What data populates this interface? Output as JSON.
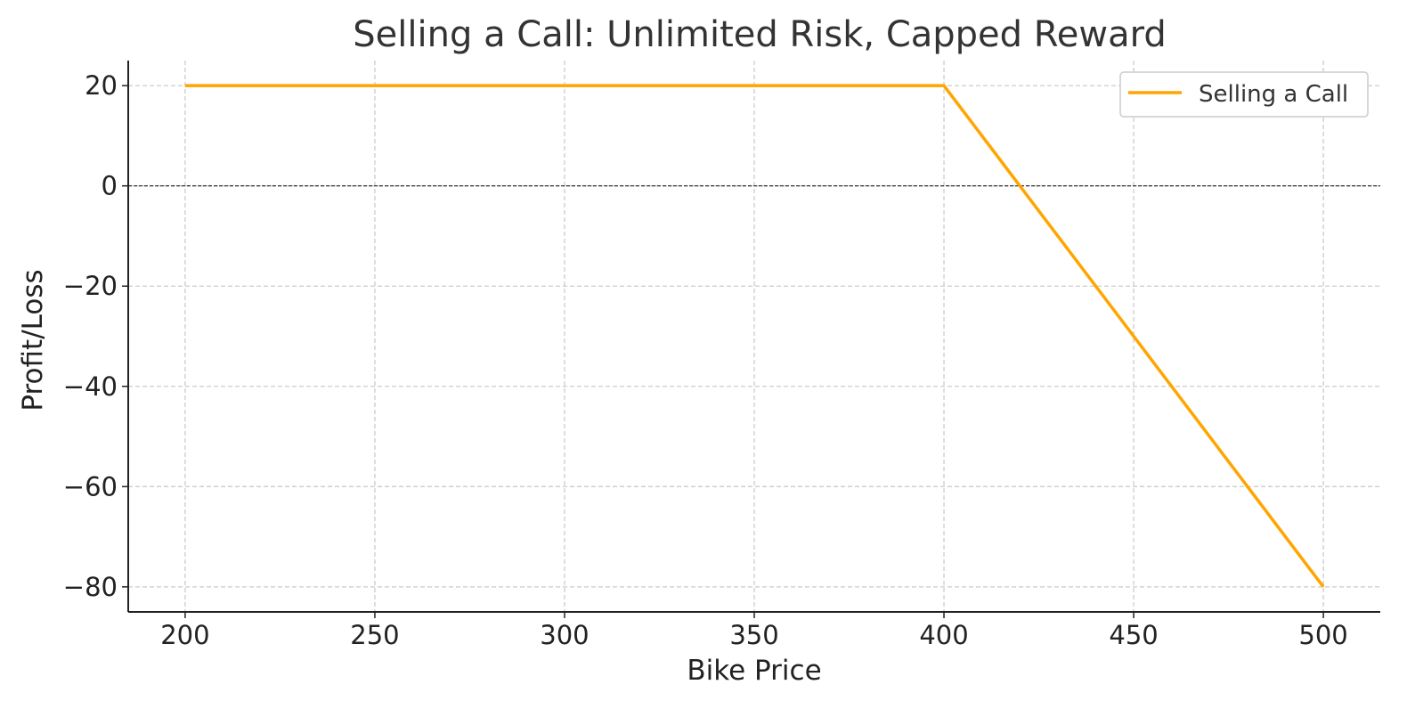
{
  "chart_data": {
    "type": "line",
    "title": "Selling a Call: Unlimited Risk, Capped Reward",
    "xlabel": "Bike Price",
    "ylabel": "Profit/Loss",
    "xlim": [
      185,
      515
    ],
    "ylim": [
      -85,
      25
    ],
    "x_ticks": [
      200,
      250,
      300,
      350,
      400,
      450,
      500
    ],
    "y_ticks": [
      20,
      0,
      -20,
      -40,
      -60,
      -80
    ],
    "x_tick_labels": [
      "200",
      "250",
      "300",
      "350",
      "400",
      "450",
      "500"
    ],
    "y_tick_labels": [
      "20",
      "0",
      "−20",
      "−40",
      "−60",
      "−80"
    ],
    "grid": true,
    "zero_line": true,
    "legend_position": "top-right",
    "series": [
      {
        "name": "Selling a Call",
        "color": "#FFA500",
        "x": [
          200,
          400,
          500
        ],
        "y": [
          20,
          20,
          -80
        ]
      }
    ]
  }
}
